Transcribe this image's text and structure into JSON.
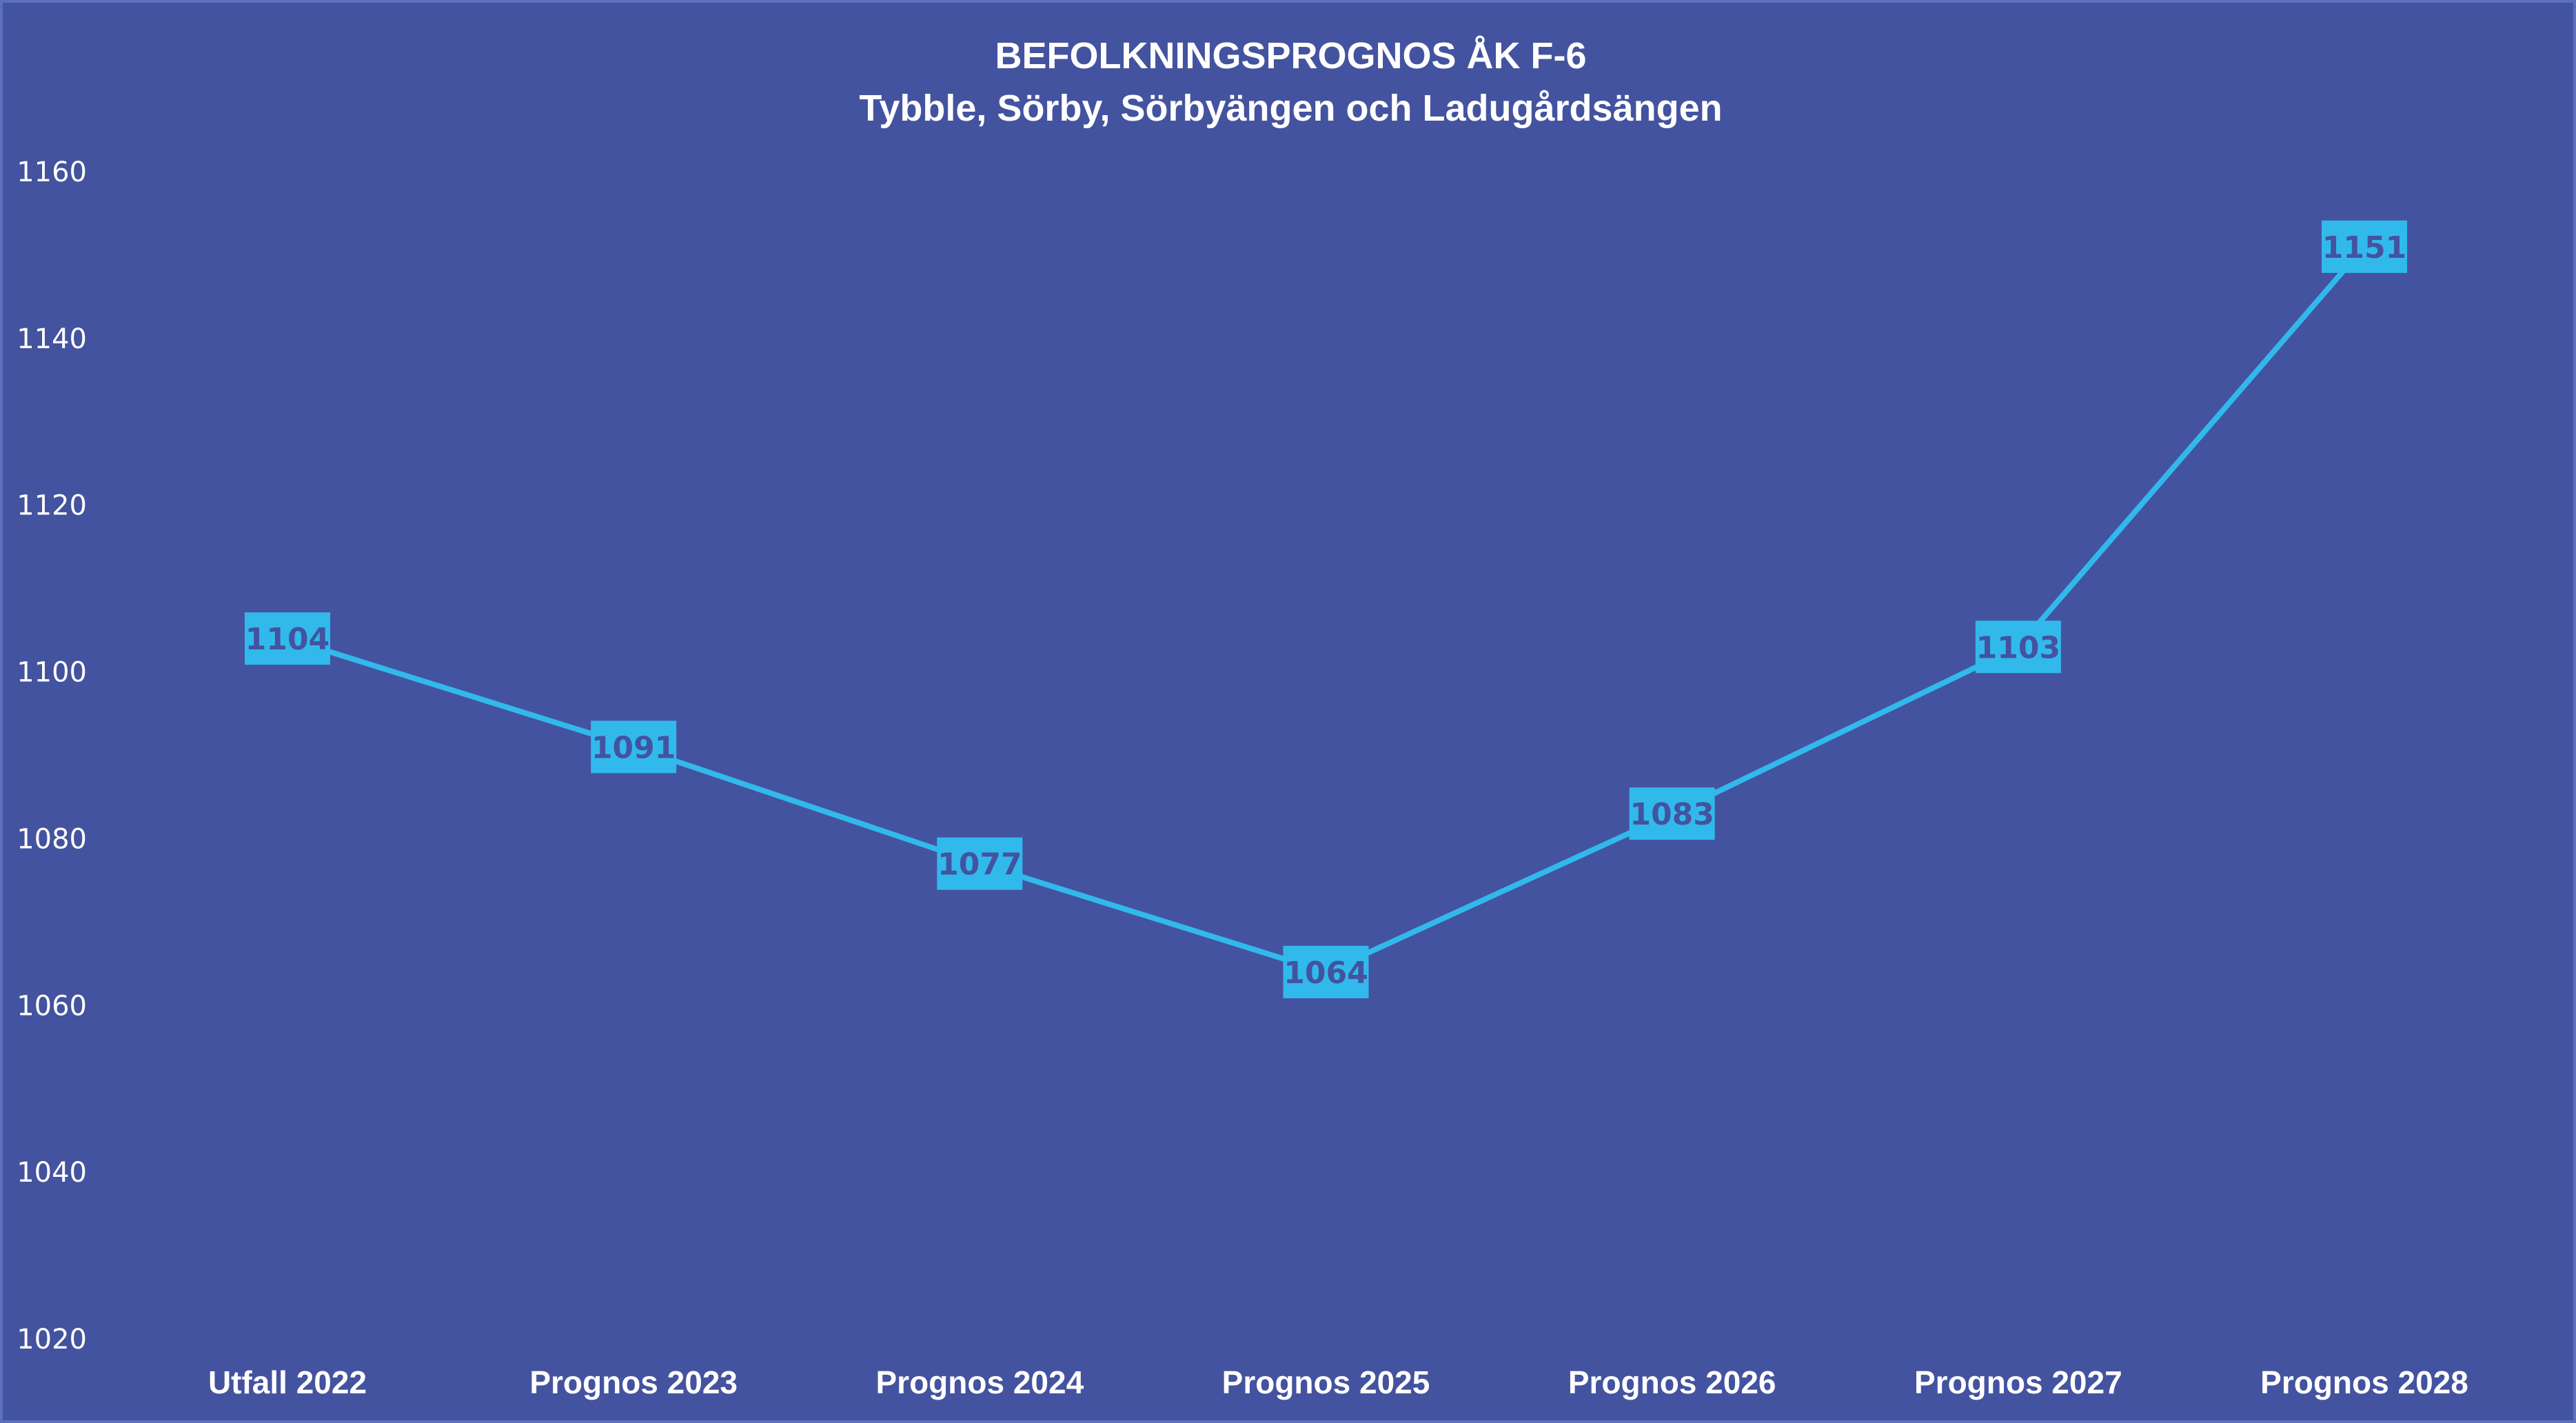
{
  "chart_data": {
    "type": "line",
    "title": "BEFOLKNINGSPROGNOS ÅK F-6",
    "subtitle": "Tybble, Sörby, Sörbyängen och Ladugårdsängen",
    "categories": [
      "Utfall 2022",
      "Prognos 2023",
      "Prognos 2024",
      "Prognos 2025",
      "Prognos 2026",
      "Prognos 2027",
      "Prognos 2028"
    ],
    "series": [
      {
        "values": [
          1104,
          1091,
          1077,
          1064,
          1083,
          1103,
          1151
        ]
      }
    ],
    "ylim": [
      1020,
      1160
    ],
    "yticks": [
      1020,
      1040,
      1060,
      1080,
      1100,
      1120,
      1140,
      1160
    ],
    "grid": false,
    "line_color": "#31b9ec",
    "label_box_color": "#31b9ec",
    "label_text_color": "#44539f",
    "background_color": "#44539f"
  }
}
